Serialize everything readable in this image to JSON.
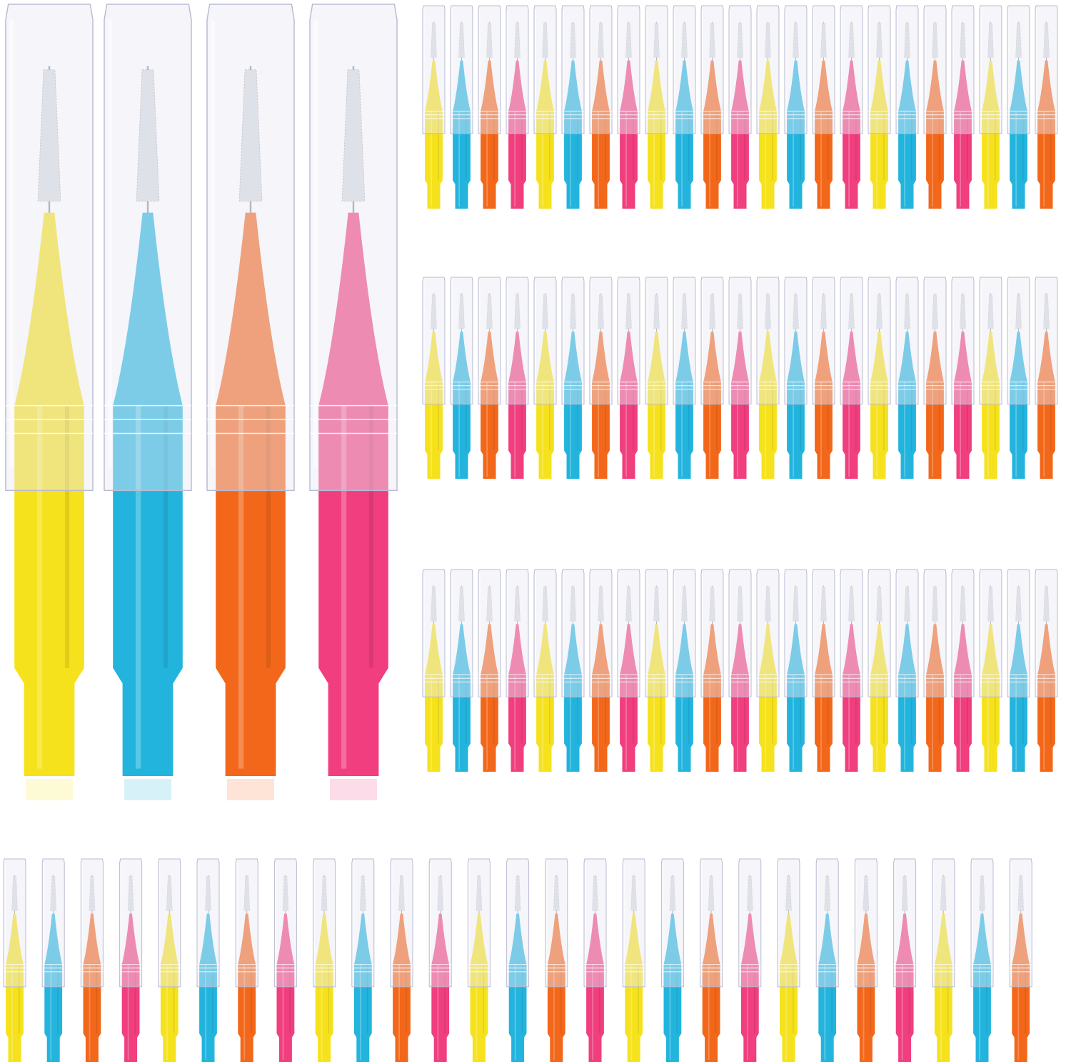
{
  "colors": {
    "yellow": "#f6e21c",
    "blue": "#23b4de",
    "orange": "#f2671a",
    "pink": "#f03e7e",
    "cap": "#e9e9f4",
    "bristle": "#d8dadf",
    "wire": "#8a8f96"
  },
  "featured_brushes": [
    "yellow",
    "blue",
    "orange",
    "pink"
  ],
  "grid_rows": [
    {
      "count": 23,
      "pattern": [
        "yellow",
        "blue",
        "orange",
        "pink"
      ]
    },
    {
      "count": 23,
      "pattern": [
        "yellow",
        "blue",
        "orange",
        "pink"
      ]
    },
    {
      "count": 23,
      "pattern": [
        "yellow",
        "blue",
        "orange",
        "pink"
      ]
    },
    {
      "count": 27,
      "pattern": [
        "yellow",
        "blue",
        "orange",
        "pink"
      ]
    }
  ]
}
